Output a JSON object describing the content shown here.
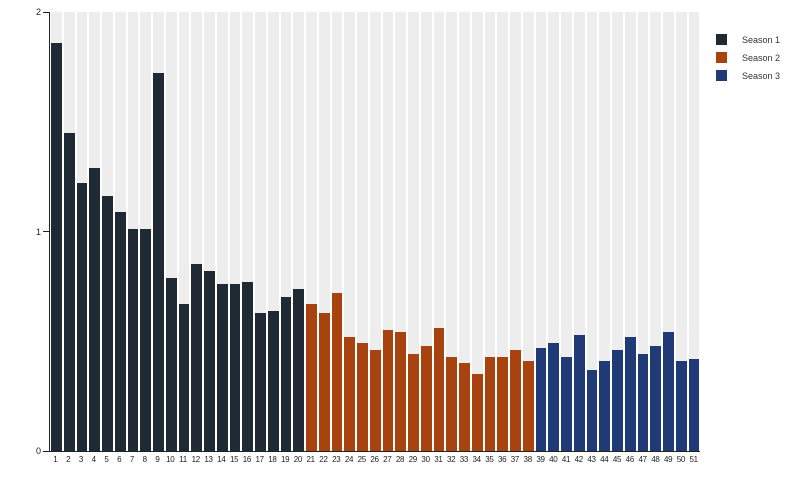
{
  "page": {
    "background": "#ffffff"
  },
  "style": {
    "stripe_color": "#ededed",
    "axis_color": "#222222",
    "label_color": "#333333"
  },
  "legend": {
    "items": [
      "Season 1",
      "Season 2",
      "Season 3"
    ]
  },
  "chart_data": {
    "type": "bar",
    "title": "",
    "xlabel": "",
    "ylabel": "",
    "ylim": [
      0,
      2
    ],
    "grid": "vertical light-gray background stripe behind every bar slot, full plot height",
    "legend_position": "top-right",
    "categories": [
      "1",
      "2",
      "3",
      "4",
      "5",
      "6",
      "7",
      "8",
      "9",
      "10",
      "11",
      "12",
      "13",
      "14",
      "15",
      "16",
      "17",
      "18",
      "19",
      "20",
      "21",
      "22",
      "23",
      "24",
      "25",
      "26",
      "27",
      "28",
      "29",
      "30",
      "31",
      "32",
      "33",
      "34",
      "35",
      "36",
      "37",
      "38",
      "39",
      "40",
      "41",
      "42",
      "43",
      "44",
      "45",
      "46",
      "47",
      "48",
      "49",
      "50",
      "51"
    ],
    "y_ticks": [
      {
        "label": "2",
        "value": 2
      },
      {
        "label": "1",
        "value": 1
      },
      {
        "label": "0",
        "value": 0
      }
    ],
    "series": [
      {
        "name": "Season 1",
        "color": "#1f2a35",
        "episodes": "1-20",
        "values": [
          1.86,
          1.45,
          1.22,
          1.29,
          1.16,
          1.09,
          1.01,
          1.01,
          1.72,
          0.79,
          0.67,
          0.85,
          0.82,
          0.76,
          0.76,
          0.77,
          0.63,
          0.64,
          0.7,
          0.74
        ]
      },
      {
        "name": "Season 2",
        "color": "#a8430f",
        "episodes": "21-38",
        "values": [
          0.67,
          0.63,
          0.72,
          0.52,
          0.49,
          0.46,
          0.55,
          0.54,
          0.44,
          0.48,
          0.56,
          0.43,
          0.4,
          0.35,
          0.43,
          0.43,
          0.46,
          0.41
        ]
      },
      {
        "name": "Season 3",
        "color": "#203a78",
        "episodes": "39-51",
        "values": [
          0.47,
          0.49,
          0.43,
          0.53,
          0.37,
          0.41,
          0.46,
          0.52,
          0.44,
          0.48,
          0.54,
          0.41,
          0.42
        ]
      }
    ]
  }
}
